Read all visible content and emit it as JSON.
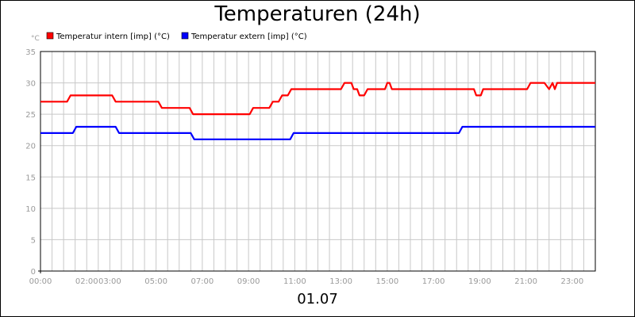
{
  "chart_data": {
    "type": "line",
    "title": "Temperaturen (24h)",
    "ylabel": "°C",
    "xlabel": "01.07",
    "ylim": [
      0,
      35
    ],
    "yticks": [
      0,
      5,
      10,
      15,
      20,
      25,
      30,
      35
    ],
    "xlim": [
      0,
      24
    ],
    "xticks": [
      {
        "x": 0,
        "label": "00:00"
      },
      {
        "x": 2,
        "label": "02:00"
      },
      {
        "x": 3,
        "label": "03:00"
      },
      {
        "x": 5,
        "label": "05:00"
      },
      {
        "x": 7,
        "label": "07:00"
      },
      {
        "x": 9,
        "label": "09:00"
      },
      {
        "x": 11,
        "label": "11:00"
      },
      {
        "x": 13,
        "label": "13:00"
      },
      {
        "x": 15,
        "label": "15:00"
      },
      {
        "x": 17,
        "label": "17:00"
      },
      {
        "x": 19,
        "label": "19:00"
      },
      {
        "x": 21,
        "label": "21:00"
      },
      {
        "x": 23,
        "label": "23:00"
      }
    ],
    "grid": true,
    "legend_placement": "top-left",
    "series": [
      {
        "name": "Temperatur intern [imp] (°C)",
        "color": "#ff0000",
        "points": [
          [
            0,
            27
          ],
          [
            1.15,
            27
          ],
          [
            1.3,
            28
          ],
          [
            3.1,
            28
          ],
          [
            3.25,
            27
          ],
          [
            5.1,
            27
          ],
          [
            5.25,
            26
          ],
          [
            6.45,
            26
          ],
          [
            6.6,
            25
          ],
          [
            9.05,
            25
          ],
          [
            9.2,
            26
          ],
          [
            9.9,
            26
          ],
          [
            10.05,
            27
          ],
          [
            10.3,
            27
          ],
          [
            10.45,
            28
          ],
          [
            10.7,
            28
          ],
          [
            10.85,
            29
          ],
          [
            13.0,
            29
          ],
          [
            13.15,
            30
          ],
          [
            13.45,
            30
          ],
          [
            13.55,
            29
          ],
          [
            13.7,
            29
          ],
          [
            13.8,
            28
          ],
          [
            14.0,
            28
          ],
          [
            14.15,
            29
          ],
          [
            14.9,
            29
          ],
          [
            15.0,
            30
          ],
          [
            15.1,
            30
          ],
          [
            15.2,
            29
          ],
          [
            18.75,
            29
          ],
          [
            18.85,
            28
          ],
          [
            19.05,
            28
          ],
          [
            19.15,
            29
          ],
          [
            21.05,
            29
          ],
          [
            21.2,
            30
          ],
          [
            21.8,
            30
          ],
          [
            22.0,
            29
          ],
          [
            22.15,
            30
          ],
          [
            22.25,
            29
          ],
          [
            22.35,
            30
          ],
          [
            24,
            30
          ]
        ]
      },
      {
        "name": "Temperatur extern [imp] (°C)",
        "color": "#0000ff",
        "points": [
          [
            0,
            22
          ],
          [
            1.4,
            22
          ],
          [
            1.55,
            23
          ],
          [
            3.25,
            23
          ],
          [
            3.4,
            22
          ],
          [
            6.5,
            22
          ],
          [
            6.65,
            21
          ],
          [
            10.8,
            21
          ],
          [
            10.95,
            22
          ],
          [
            18.1,
            22
          ],
          [
            18.25,
            23
          ],
          [
            24,
            23
          ]
        ]
      }
    ]
  }
}
